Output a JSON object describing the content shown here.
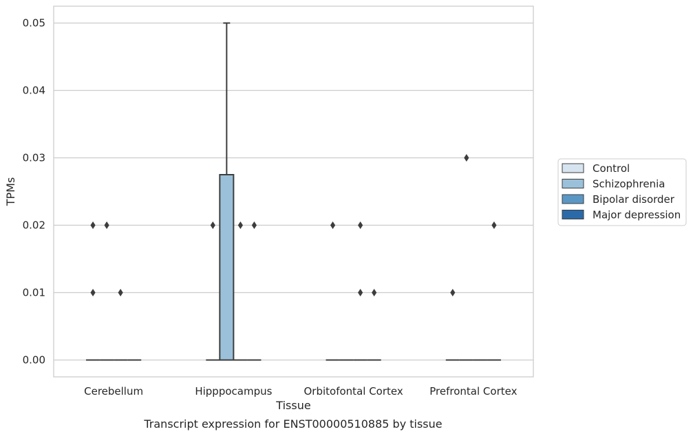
{
  "chart_data": {
    "type": "box",
    "title": "Transcript expression for ENST00000510885 by tissue",
    "xlabel": "Tissue",
    "ylabel": "TPMs",
    "ylim": [
      -0.0025,
      0.0525
    ],
    "yticks": [
      "0.00",
      "0.01",
      "0.02",
      "0.03",
      "0.04",
      "0.05"
    ],
    "categories": [
      "Cerebellum",
      "Hipppocampus",
      "Orbitofontal Cortex",
      "Prefrontal Cortex"
    ],
    "grid": true,
    "legend_position": "right",
    "series": [
      {
        "name": "Control",
        "color": "#d6e4f0",
        "boxes": [
          {
            "q1": 0,
            "median": 0,
            "q3": 0,
            "whisker_low": 0,
            "whisker_high": 0,
            "outliers": [
              0.02,
              0.01
            ]
          },
          {
            "q1": 0,
            "median": 0,
            "q3": 0,
            "whisker_low": 0,
            "whisker_high": 0,
            "outliers": [
              0.02
            ]
          },
          {
            "q1": 0,
            "median": 0,
            "q3": 0,
            "whisker_low": 0,
            "whisker_high": 0,
            "outliers": [
              0.02
            ]
          },
          {
            "q1": 0,
            "median": 0,
            "q3": 0,
            "whisker_low": 0,
            "whisker_high": 0,
            "outliers": [
              0.01
            ]
          }
        ]
      },
      {
        "name": "Schizophrenia",
        "color": "#9bc0da",
        "boxes": [
          {
            "q1": 0,
            "median": 0,
            "q3": 0,
            "whisker_low": 0,
            "whisker_high": 0,
            "outliers": [
              0.02
            ]
          },
          {
            "q1": 0,
            "median": 0,
            "q3": 0.0275,
            "whisker_low": 0,
            "whisker_high": 0.05,
            "outliers": []
          },
          {
            "q1": 0,
            "median": 0,
            "q3": 0,
            "whisker_low": 0,
            "whisker_high": 0,
            "outliers": []
          },
          {
            "q1": 0,
            "median": 0,
            "q3": 0,
            "whisker_low": 0,
            "whisker_high": 0,
            "outliers": [
              0.03
            ]
          }
        ]
      },
      {
        "name": "Bipolar disorder",
        "color": "#5b97c5",
        "boxes": [
          {
            "q1": 0,
            "median": 0,
            "q3": 0,
            "whisker_low": 0,
            "whisker_high": 0,
            "outliers": [
              0.01
            ]
          },
          {
            "q1": 0,
            "median": 0,
            "q3": 0,
            "whisker_low": 0,
            "whisker_high": 0,
            "outliers": [
              0.02
            ]
          },
          {
            "q1": 0,
            "median": 0,
            "q3": 0,
            "whisker_low": 0,
            "whisker_high": 0,
            "outliers": [
              0.02,
              0.01
            ]
          },
          {
            "q1": 0,
            "median": 0,
            "q3": 0,
            "whisker_low": 0,
            "whisker_high": 0,
            "outliers": []
          }
        ]
      },
      {
        "name": "Major depression",
        "color": "#2b6aa8",
        "boxes": [
          {
            "q1": 0,
            "median": 0,
            "q3": 0,
            "whisker_low": 0,
            "whisker_high": 0,
            "outliers": []
          },
          {
            "q1": 0,
            "median": 0,
            "q3": 0,
            "whisker_low": 0,
            "whisker_high": 0,
            "outliers": [
              0.02
            ]
          },
          {
            "q1": 0,
            "median": 0,
            "q3": 0,
            "whisker_low": 0,
            "whisker_high": 0,
            "outliers": [
              0.01
            ]
          },
          {
            "q1": 0,
            "median": 0,
            "q3": 0,
            "whisker_low": 0,
            "whisker_high": 0,
            "outliers": [
              0.02
            ]
          }
        ]
      }
    ]
  }
}
